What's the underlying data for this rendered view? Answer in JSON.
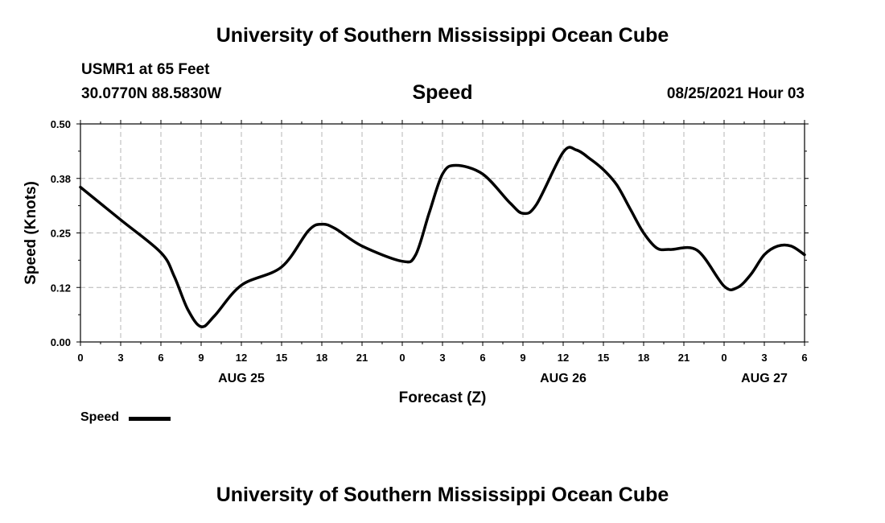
{
  "header": {
    "title_top": "University of Southern Mississippi Ocean Cube",
    "station": "USMR1 at 65 Feet",
    "coords": "30.0770N  88.5830W",
    "datetime": "08/25/2021 Hour 03",
    "title_bottom": "University of Southern Mississippi Ocean Cube"
  },
  "legend": {
    "label": "Speed",
    "color": "#000000"
  },
  "chart_data": {
    "type": "line",
    "title": "Speed",
    "xlabel": "Forecast (Z)",
    "ylabel": "Speed (Knots)",
    "xlim": [
      0,
      54
    ],
    "ylim": [
      0,
      0.5
    ],
    "yticks": [
      "0.00",
      "0.12",
      "0.25",
      "0.38",
      "0.50"
    ],
    "ytick_values": [
      0,
      0.125,
      0.25,
      0.375,
      0.5
    ],
    "xticks": [
      "0",
      "3",
      "6",
      "9",
      "12",
      "15",
      "18",
      "21",
      "0",
      "3",
      "6",
      "9",
      "12",
      "15",
      "18",
      "21",
      "0",
      "3",
      "6"
    ],
    "date_labels": [
      {
        "label": "AUG 25",
        "at": 12
      },
      {
        "label": "AUG 26",
        "at": 36
      },
      {
        "label": "AUG 27",
        "at": 51
      }
    ],
    "grid": true,
    "series": [
      {
        "name": "Speed",
        "x": [
          0,
          3,
          6,
          7,
          8,
          9,
          10,
          12,
          15,
          17,
          18,
          19,
          21,
          24,
          25,
          26,
          27,
          28,
          30,
          32,
          33,
          34,
          36,
          37,
          38,
          39,
          40,
          41,
          42,
          43,
          44,
          46,
          48,
          49,
          50,
          51,
          52,
          53,
          54
        ],
        "y": [
          0.355,
          0.28,
          0.205,
          0.15,
          0.075,
          0.035,
          0.06,
          0.13,
          0.172,
          0.255,
          0.27,
          0.26,
          0.22,
          0.185,
          0.2,
          0.295,
          0.385,
          0.405,
          0.385,
          0.32,
          0.295,
          0.315,
          0.435,
          0.44,
          0.42,
          0.395,
          0.36,
          0.305,
          0.25,
          0.215,
          0.212,
          0.21,
          0.128,
          0.125,
          0.155,
          0.2,
          0.22,
          0.22,
          0.2
        ]
      }
    ]
  }
}
